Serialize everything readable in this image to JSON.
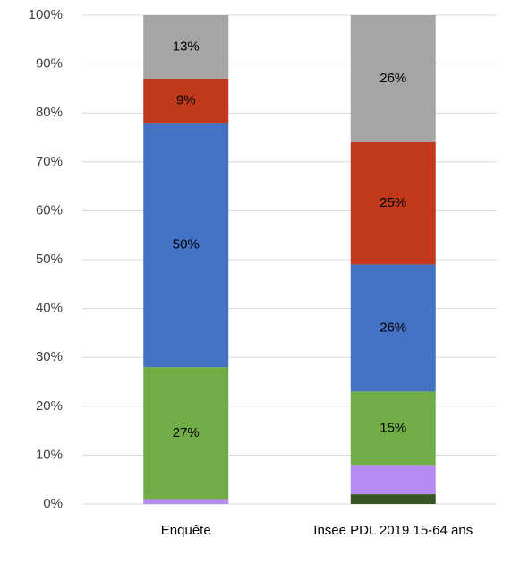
{
  "chart_data": {
    "type": "stacked_bar",
    "categories": [
      "Enquête",
      "Insee PDL 2019 15-64 ans"
    ],
    "series": [
      {
        "color": "#375623",
        "values": [
          0,
          2
        ],
        "value_labels": [
          null,
          null
        ]
      },
      {
        "color": "#b48cf2",
        "values": [
          1,
          6
        ],
        "value_labels": [
          null,
          null
        ]
      },
      {
        "color": "#70ad47",
        "values": [
          27,
          15
        ],
        "value_labels": [
          "27%",
          "15%"
        ]
      },
      {
        "color": "#4472c4",
        "values": [
          50,
          26
        ],
        "value_labels": [
          "50%",
          "26%"
        ]
      },
      {
        "color": "#c0391b",
        "values": [
          9,
          25
        ],
        "value_labels": [
          "9%",
          "25%"
        ]
      },
      {
        "color": "#a5a5a5",
        "values": [
          13,
          26
        ],
        "value_labels": [
          "13%",
          "26%"
        ]
      }
    ],
    "ylim": [
      0,
      100
    ],
    "yticks": [
      {
        "value": 0,
        "label": "0%"
      },
      {
        "value": 10,
        "label": "10%"
      },
      {
        "value": 20,
        "label": "20%"
      },
      {
        "value": 30,
        "label": "30%"
      },
      {
        "value": 40,
        "label": "40%"
      },
      {
        "value": 50,
        "label": "50%"
      },
      {
        "value": 60,
        "label": "60%"
      },
      {
        "value": 70,
        "label": "70%"
      },
      {
        "value": 80,
        "label": "80%"
      },
      {
        "value": 90,
        "label": "90%"
      },
      {
        "value": 100,
        "label": "100%"
      }
    ],
    "grid": true
  }
}
